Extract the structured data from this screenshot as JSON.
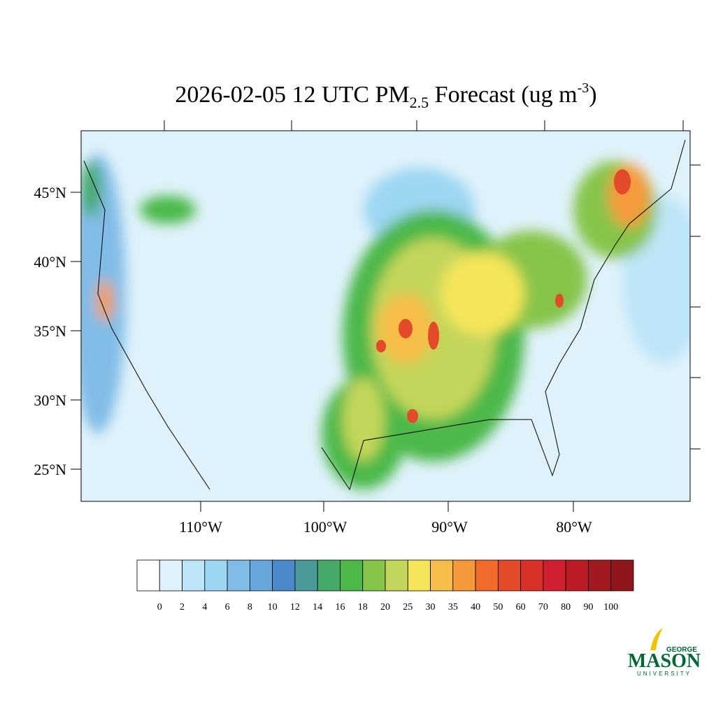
{
  "title": {
    "main": "2026-02-05 12 UTC PM",
    "subscript": "2.5",
    "middle": " Forecast (ug m",
    "superscript": "-3",
    "end": ")"
  },
  "lat_labels": [
    "45°N",
    "40°N",
    "35°N",
    "30°N",
    "25°N"
  ],
  "lon_labels": [
    "110°W",
    "100°W",
    "90°W",
    "80°W"
  ],
  "colorbar": {
    "levels": [
      0,
      2,
      4,
      6,
      8,
      10,
      12,
      14,
      16,
      18,
      20,
      25,
      30,
      35,
      40,
      50,
      60,
      70,
      80,
      90,
      100
    ],
    "colors": [
      "#ffffff",
      "#dff2fb",
      "#bde5f7",
      "#9dd6f3",
      "#81bce6",
      "#66a6da",
      "#4a8ac8",
      "#4a9a9a",
      "#45a96a",
      "#4cb848",
      "#86c44a",
      "#c3d55a",
      "#f5e55a",
      "#f7bd4a",
      "#f59a3c",
      "#f06a2c",
      "#e34a2a",
      "#d93028",
      "#d02030",
      "#bb1c26",
      "#a21a20",
      "#8f161a"
    ]
  },
  "logo": {
    "top": "GEORGE",
    "name": "MASON",
    "bottom": "UNIVERSITY"
  }
}
